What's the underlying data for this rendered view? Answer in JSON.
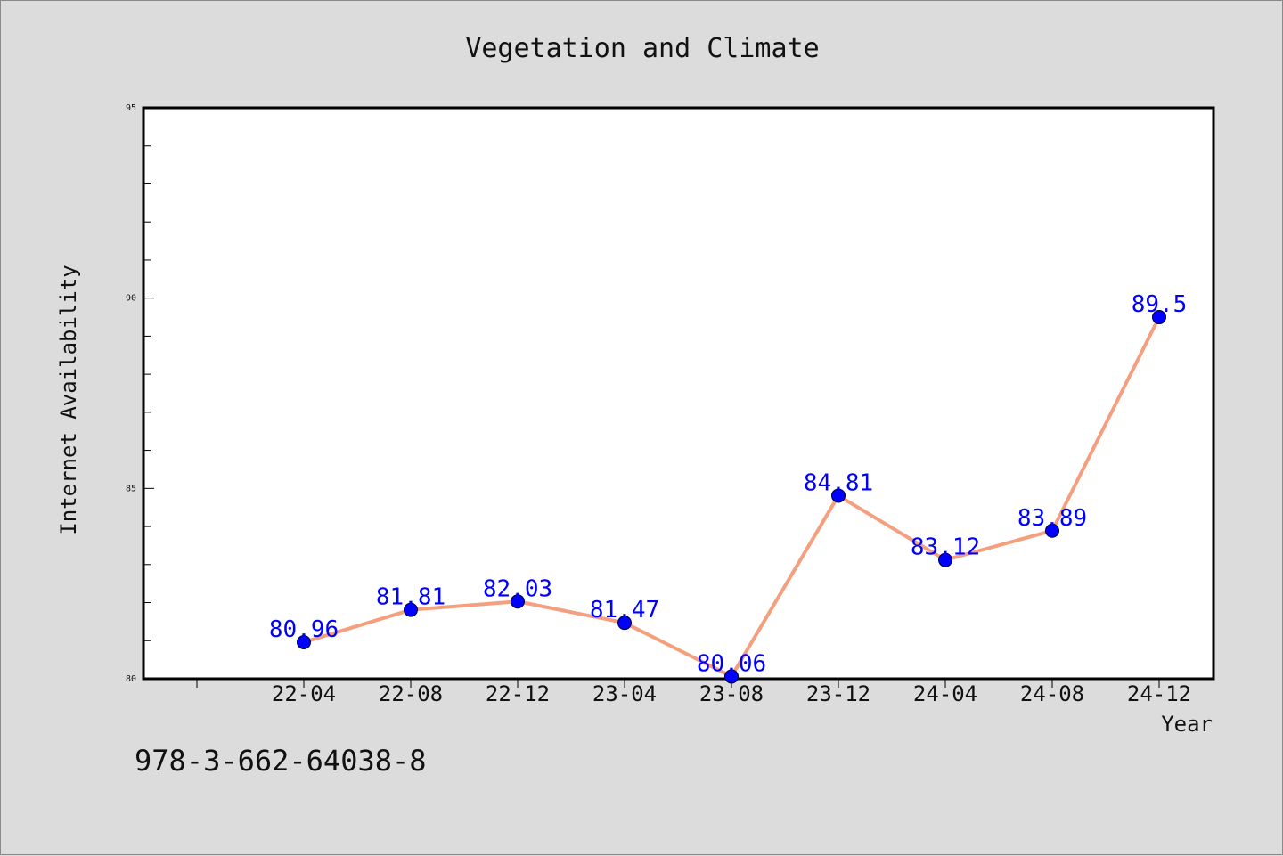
{
  "chart_data": {
    "type": "line",
    "title": "Vegetation and Climate",
    "xlabel": "Year",
    "ylabel": "Internet Availability",
    "categories": [
      "22-04",
      "22-08",
      "22-12",
      "23-04",
      "23-08",
      "23-12",
      "24-04",
      "24-08",
      "24-12"
    ],
    "series": [
      {
        "values": [
          80.96,
          81.81,
          82.03,
          81.47,
          80.06,
          84.81,
          83.12,
          83.89,
          89.5
        ]
      }
    ],
    "data_labels": [
      "80.96",
      "81.81",
      "82.03",
      "81.47",
      "80.06",
      "84.81",
      "83.12",
      "83.89",
      "89.5"
    ],
    "ylim": [
      80,
      95
    ],
    "yticks": [
      80,
      85,
      90,
      95
    ],
    "grid": false,
    "line_color": "#f4a07f",
    "marker_color": "#0000ff",
    "label_color": "#0000ff"
  },
  "annotation": "978-3-662-64038-8"
}
